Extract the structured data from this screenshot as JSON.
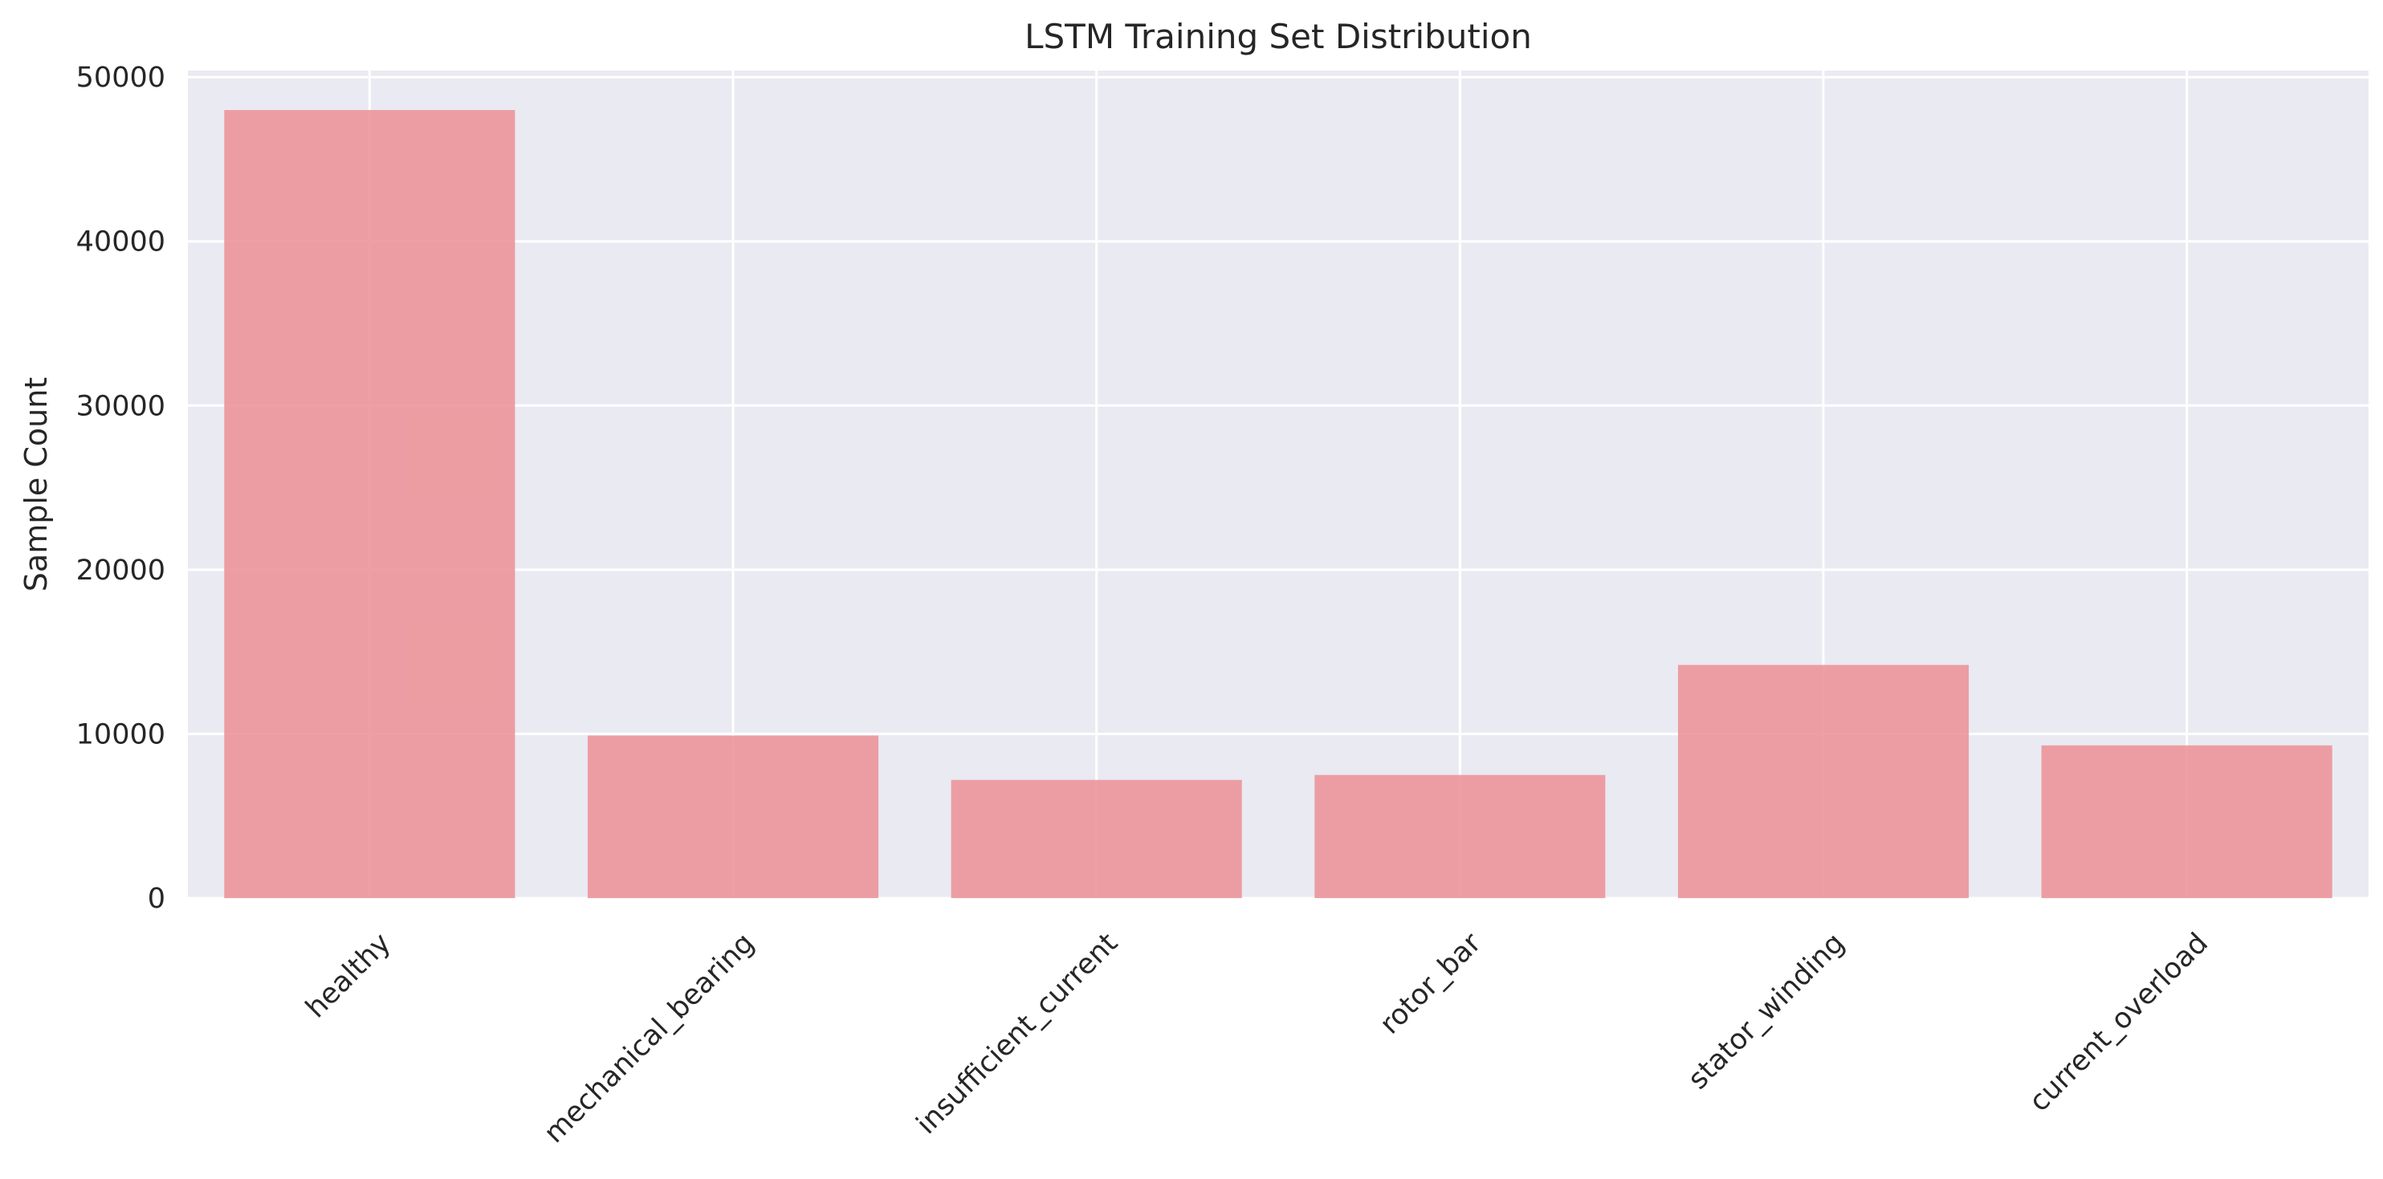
{
  "chart_data": {
    "type": "bar",
    "title": "LSTM Training Set Distribution",
    "xlabel": "",
    "ylabel": "Sample Count",
    "categories": [
      "healthy",
      "mechanical_bearing",
      "insufficient_current",
      "rotor_bar",
      "stator_winding",
      "current_overload"
    ],
    "values": [
      48000,
      9900,
      7200,
      7500,
      14200,
      9300
    ],
    "ylim": [
      0,
      50400
    ],
    "yticks": [
      0,
      10000,
      20000,
      30000,
      40000,
      50000
    ],
    "grid": true,
    "legend": "none",
    "bar_color": "#ec9297",
    "background_color": "#eaeaf2"
  }
}
